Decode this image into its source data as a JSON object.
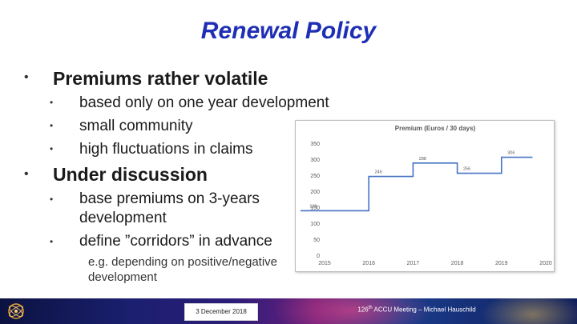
{
  "title": "Renewal Policy",
  "bullets": [
    {
      "text": "Premiums rather volatile",
      "sub": [
        "based only on one year development",
        "small community",
        "high fluctuations in claims"
      ]
    },
    {
      "text": "Under discussion",
      "sub": [
        "base premiums on 3-years development",
        "define ”corridors” in advance"
      ]
    }
  ],
  "note": "e.g. depending on positive/negative development",
  "footer": {
    "date": "3 December 2018",
    "meeting_num": "126",
    "meeting_sup": "th",
    "meeting_rest": " ACCU Meeting – Michael Hauschild"
  },
  "colors": {
    "title": "#1f2fb5",
    "line": "#4472c4"
  },
  "chart_data": {
    "type": "line",
    "step": true,
    "title": "Premium (Euros / 30 days)",
    "x_ticks": [
      "2015",
      "2016",
      "2017",
      "2018",
      "2019",
      "2020"
    ],
    "xlim": [
      2015,
      2020
    ],
    "ylim": [
      0,
      350
    ],
    "y_ticks": [
      0,
      50,
      100,
      150,
      200,
      250,
      300,
      350
    ],
    "grid": false,
    "series": [
      {
        "values": [
          {
            "x": 2015,
            "y": 139
          },
          {
            "x": 2016,
            "y": 246
          },
          {
            "x": 2017,
            "y": 288
          },
          {
            "x": 2018,
            "y": 256
          },
          {
            "x": 2019,
            "y": 306
          },
          {
            "x": 2019.7,
            "y": 306
          }
        ]
      }
    ],
    "data_labels": [
      {
        "x": 2015,
        "label": "139"
      },
      {
        "x": 2016,
        "label": "246"
      },
      {
        "x": 2017,
        "label": "288"
      },
      {
        "x": 2018,
        "label": "256"
      },
      {
        "x": 2019,
        "label": "306"
      }
    ]
  }
}
